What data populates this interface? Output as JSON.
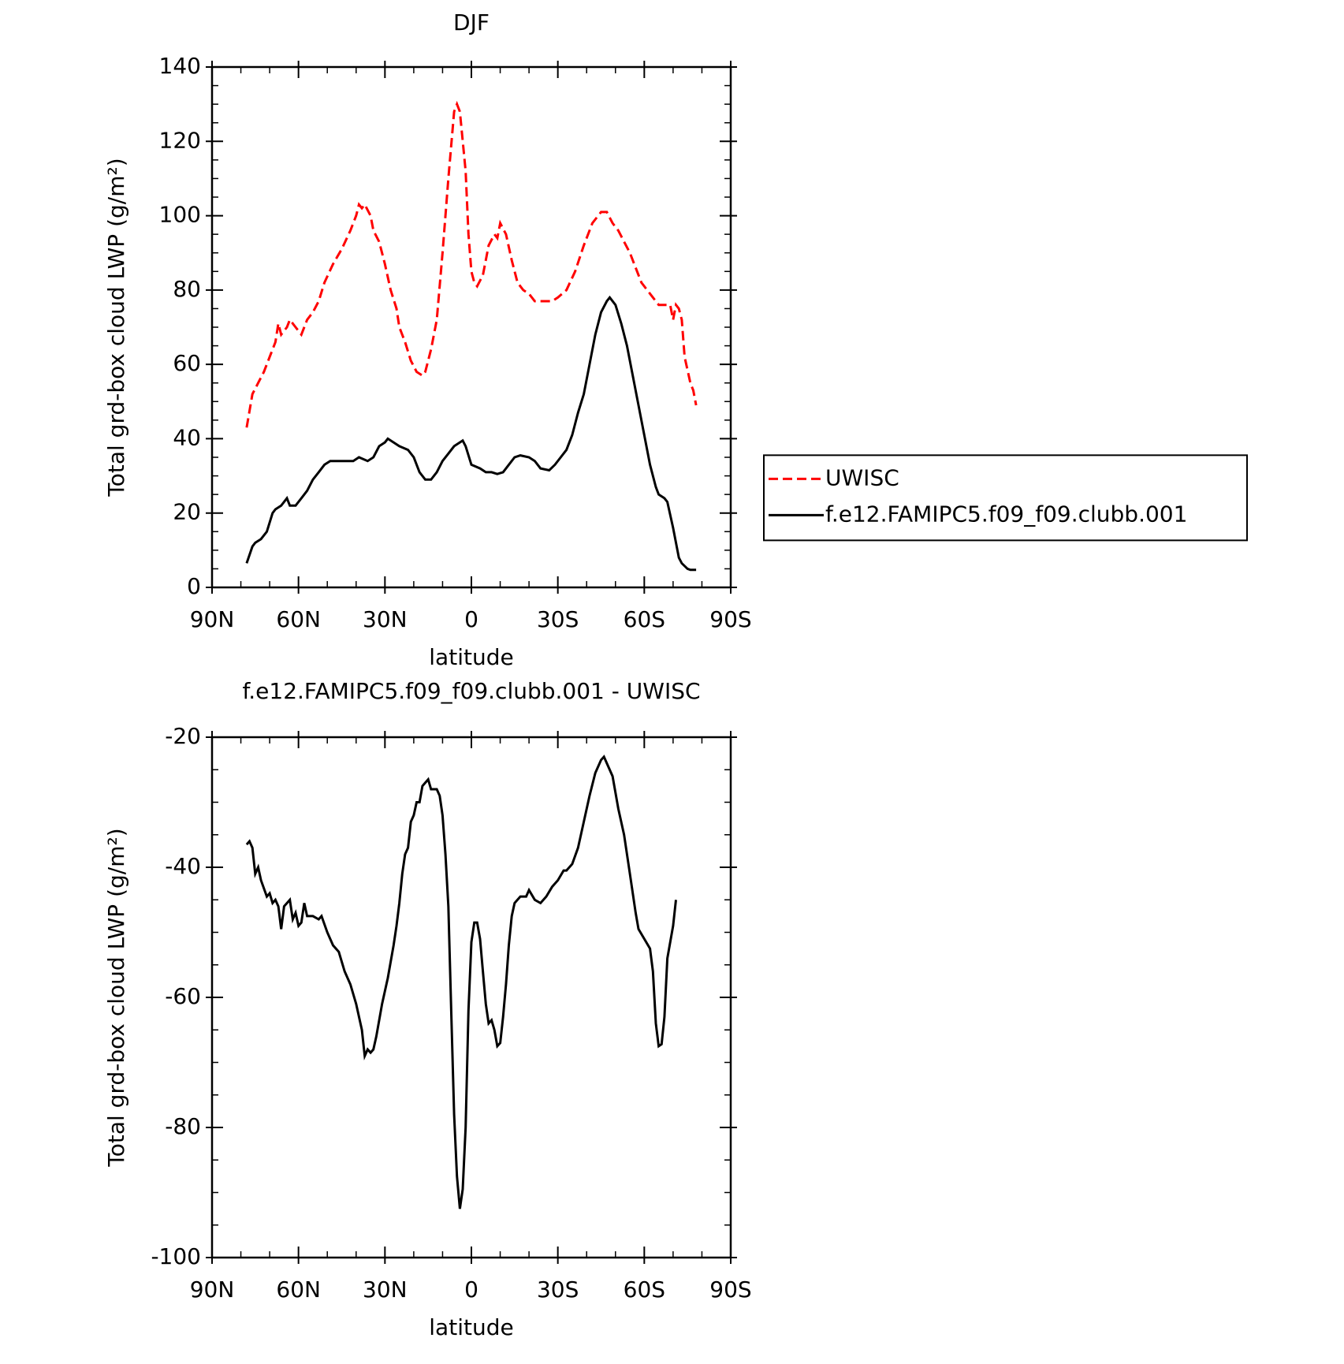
{
  "chart_data": [
    {
      "type": "line",
      "title": "DJF",
      "xlabel": "latitude",
      "ylabel": "Total grd-box cloud LWP (g/m²)",
      "xlim": [
        90,
        -90
      ],
      "xticks": [
        {
          "value": 90,
          "label": "90N"
        },
        {
          "value": 60,
          "label": "60N"
        },
        {
          "value": 30,
          "label": "30N"
        },
        0,
        {
          "value": -30,
          "label": "30S"
        },
        {
          "value": -60,
          "label": "60S"
        },
        {
          "value": -90,
          "label": "90S"
        }
      ],
      "ylim": [
        0,
        140
      ],
      "yticks": [
        0,
        20,
        40,
        60,
        80,
        100,
        120,
        140
      ],
      "legend": "right",
      "series": [
        {
          "name": "UWISC",
          "color": "#ff0000",
          "linestyle": "dashed",
          "x": [
            78,
            76,
            74,
            72,
            70,
            68,
            67,
            66,
            64,
            63,
            61,
            60,
            59,
            57,
            55,
            53,
            51,
            48,
            45,
            42,
            40,
            39,
            38,
            37,
            35,
            34,
            32,
            30,
            28,
            26,
            25,
            23,
            21,
            19,
            17,
            16,
            14,
            12,
            10,
            8,
            6,
            5,
            4,
            2,
            1,
            0,
            -1,
            -2,
            -4,
            -6,
            -8,
            -9,
            -10,
            -12,
            -14,
            -16,
            -18,
            -20,
            -22,
            -25,
            -28,
            -30,
            -33,
            -36,
            -39,
            -42,
            -45,
            -47,
            -49,
            -51,
            -53,
            -55,
            -57,
            -59,
            -61,
            -63,
            -65,
            -67,
            -69,
            -70,
            -71,
            -72,
            -73,
            -74,
            -76,
            -77,
            -78
          ],
          "values": [
            43,
            52,
            55,
            58,
            62,
            66,
            71,
            68,
            70,
            72,
            70,
            69,
            68,
            72,
            74,
            77,
            82,
            87,
            91,
            96,
            100,
            103,
            102,
            103,
            100,
            96,
            93,
            87,
            80,
            75,
            70,
            66,
            61,
            58,
            57,
            58,
            64,
            72,
            90,
            110,
            128,
            130,
            128,
            112,
            95,
            85,
            82,
            81,
            84,
            92,
            95,
            94,
            98,
            95,
            88,
            82,
            80,
            79,
            77,
            77,
            77,
            78,
            80,
            85,
            92,
            98,
            101,
            101,
            98,
            96,
            93,
            90,
            86,
            82,
            80,
            78,
            76,
            76,
            76,
            72,
            76,
            75,
            72,
            62,
            55,
            53,
            49
          ]
        },
        {
          "name": "f.e12.FAMIPC5.f09_f09.clubb.001",
          "color": "#000000",
          "linestyle": "solid",
          "x": [
            78,
            76,
            75,
            73,
            71,
            69,
            68,
            66,
            64,
            63,
            61,
            59,
            57,
            55,
            53,
            51,
            49,
            47,
            45,
            43,
            41,
            39,
            36,
            34,
            32,
            30,
            29,
            27,
            25,
            22,
            20,
            18,
            16,
            14,
            12,
            10,
            8,
            6,
            3,
            2,
            0,
            -3,
            -5,
            -7,
            -9,
            -11,
            -13,
            -15,
            -17,
            -20,
            -22,
            -24,
            -27,
            -29,
            -31,
            -33,
            -35,
            -37,
            -39,
            -41,
            -43,
            -45,
            -47,
            -48,
            -50,
            -52,
            -54,
            -56,
            -58,
            -60,
            -62,
            -64,
            -65,
            -67,
            -68,
            -70,
            -72,
            -73,
            -75,
            -76,
            -78
          ],
          "values": [
            6.5,
            11,
            12,
            13,
            15,
            20,
            21,
            22,
            24,
            22,
            22,
            24,
            26,
            29,
            31,
            33,
            34,
            34,
            34,
            34,
            34,
            35,
            34,
            35,
            38,
            39,
            40,
            39,
            38,
            37,
            35,
            31,
            29,
            29,
            31,
            34,
            36,
            38,
            39.5,
            38,
            33,
            32,
            31,
            31,
            30.5,
            31,
            33,
            35,
            35.5,
            35,
            34,
            32,
            31.5,
            33,
            35,
            37,
            41,
            47,
            52,
            60,
            68,
            74,
            77,
            78,
            76,
            71,
            65,
            57,
            49,
            41,
            33,
            27,
            25,
            24,
            23,
            16,
            8,
            6.5,
            5,
            4.7,
            4.7
          ]
        }
      ]
    },
    {
      "type": "line",
      "title": "f.e12.FAMIPC5.f09_f09.clubb.001 - UWISC",
      "xlabel": "latitude",
      "ylabel": "Total grd-box cloud LWP (g/m²)",
      "xlim": [
        90,
        -90
      ],
      "xticks": [
        {
          "value": 90,
          "label": "90N"
        },
        {
          "value": 60,
          "label": "60N"
        },
        {
          "value": 30,
          "label": "30N"
        },
        0,
        {
          "value": -30,
          "label": "30S"
        },
        {
          "value": -60,
          "label": "60S"
        },
        {
          "value": -90,
          "label": "90S"
        }
      ],
      "ylim": [
        -100,
        -20
      ],
      "yticks": [
        -100,
        -80,
        -60,
        -40,
        -20
      ],
      "series": [
        {
          "color": "#000000",
          "linestyle": "solid",
          "x": [
            78,
            77,
            76,
            75,
            74,
            73,
            71,
            70,
            69,
            68,
            67,
            66,
            65,
            63,
            62,
            61,
            60,
            59,
            58,
            57,
            55,
            53,
            52,
            50,
            48,
            46,
            44,
            42,
            40,
            38,
            37,
            36,
            35,
            34,
            33,
            31,
            29,
            27,
            26,
            25,
            24,
            23,
            22,
            21,
            20,
            19,
            18,
            17,
            16,
            15,
            14,
            12,
            11,
            10,
            9,
            8,
            7,
            6,
            5,
            4,
            3,
            2,
            1,
            0,
            -1,
            -2,
            -3,
            -4,
            -5,
            -6,
            -7,
            -8,
            -9,
            -10,
            -11,
            -12,
            -13,
            -14,
            -15,
            -17,
            -19,
            -20,
            -22,
            -24,
            -26,
            -28,
            -30,
            -32,
            -33,
            -35,
            -37,
            -39,
            -41,
            -43,
            -45,
            -46,
            -47,
            -49,
            -51,
            -53,
            -55,
            -57,
            -58,
            -60,
            -62,
            -63,
            -64,
            -65,
            -66,
            -67,
            -68,
            -70,
            -71
          ],
          "values": [
            -36.5,
            -36,
            -37,
            -41,
            -40,
            -42,
            -44.5,
            -44,
            -45.5,
            -45,
            -46,
            -49.5,
            -46,
            -45,
            -48,
            -47,
            -49,
            -48.5,
            -45.5,
            -47.5,
            -47.5,
            -48,
            -47.5,
            -50,
            -52,
            -53,
            -56,
            -58,
            -61,
            -65,
            -69,
            -68,
            -68.5,
            -68,
            -66,
            -61,
            -57,
            -52,
            -49,
            -45.5,
            -41,
            -38,
            -37,
            -33,
            -32,
            -30,
            -30,
            -27.5,
            -27,
            -26.5,
            -28,
            -28,
            -29,
            -32,
            -38,
            -46,
            -62,
            -78,
            -87.5,
            -92.5,
            -89.5,
            -80,
            -62,
            -51.5,
            -48.5,
            -48.5,
            -51,
            -56,
            -61,
            -64,
            -63.5,
            -65,
            -67.5,
            -67,
            -63,
            -58,
            -52,
            -47.5,
            -45.5,
            -44.5,
            -44.5,
            -43.5,
            -45,
            -45.5,
            -44.5,
            -43,
            -42,
            -40.5,
            -40.5,
            -39.5,
            -37,
            -33,
            -29,
            -25.5,
            -23.5,
            -23,
            -24,
            -26,
            -31,
            -35,
            -41,
            -47,
            -49.5,
            -51,
            -52.5,
            -56,
            -64,
            -67.5,
            -67.2,
            -63,
            -54,
            -49,
            -45
          ]
        }
      ]
    }
  ]
}
